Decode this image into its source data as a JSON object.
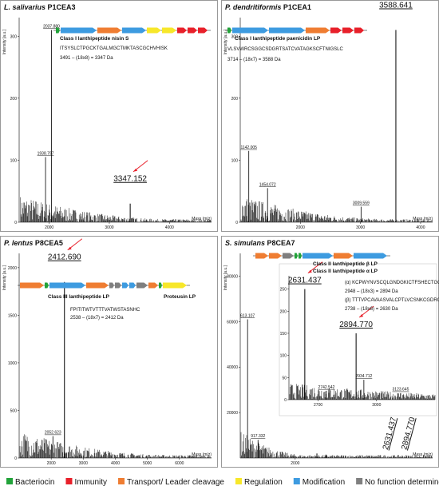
{
  "chart_data": [
    {
      "type": "stem",
      "organism": "L. salivarius",
      "strain": "P1CEA3",
      "ylabel": "Intensity [a.u.]",
      "xlabel": "Mass (m/z)",
      "xlim": [
        1500,
        4700
      ],
      "xticks": [
        2000,
        3000,
        4000
      ],
      "ylim": [
        0,
        330
      ],
      "yticks": [
        0,
        100,
        200,
        300
      ],
      "x": [
        1938.797,
        2037.88,
        3347.152
      ],
      "x_labels": [
        "1938.797",
        "2037.880",
        "3347.152"
      ],
      "values": [
        105,
        310,
        30
      ],
      "highlight": [
        2
      ],
      "annotations": [
        "Class I lanthipeptide nisin S",
        "ITSYSLCTPGCKTGALMGCTMKTASCGCHVHISK",
        "3491 – (18x8) = 3347 Da"
      ]
    },
    {
      "type": "stem",
      "organism": "P. dendritiformis",
      "strain": "P1CEA1",
      "ylabel": "Intensity [a.u.]",
      "xlabel": "Mass (m/z)",
      "xlim": [
        1000,
        4200
      ],
      "xticks": [
        2000,
        3000,
        4000
      ],
      "ylim": [
        0,
        330
      ],
      "yticks": [
        0,
        100,
        200,
        300
      ],
      "x": [
        1142.005,
        1454.072,
        3009.559,
        3588.641
      ],
      "x_labels": [
        "1142.005",
        "1454.072",
        "3009.559",
        "3588.641"
      ],
      "values": [
        115,
        55,
        25,
        310
      ],
      "highlight": [
        3
      ],
      "annotations": [
        "Class I lanthipeptide paenicidin LP",
        "VLSVWRCSGGCSDGRTSATCVATAGKSCFTNIGSLC",
        "3714 – (18x7) = 3588 Da"
      ]
    },
    {
      "type": "stem",
      "organism": "P. lentus",
      "strain": "P8CEA5",
      "ylabel": "Intensity [a.u.]",
      "xlabel": "Mass (m/z)",
      "xlim": [
        1000,
        7000
      ],
      "xticks": [
        2000,
        3000,
        4000,
        5000,
        6000
      ],
      "ylim": [
        0,
        2150
      ],
      "yticks": [
        0,
        500,
        1000,
        1500,
        2000
      ],
      "x": [
        2052.623,
        2412.69
      ],
      "x_labels": [
        "2052.623",
        "2412.690"
      ],
      "values": [
        230,
        1850
      ],
      "highlight": [
        1
      ],
      "annotations": [
        "Class III lanthipeptide LP",
        "Proteusin LP",
        "FPITITWTVTTTVATWSTASNHC",
        "2538 – (18x7) = 2412 Da"
      ]
    },
    {
      "type": "stem",
      "organism": "S. simulans",
      "strain": "P8CEA7",
      "ylabel": "Intensity [a.u.]",
      "xlabel": "Mass (m/z)",
      "xlim": [
        400,
        6000
      ],
      "xticks": [
        2000
      ],
      "ylim": [
        0,
        90000
      ],
      "yticks": [
        20000,
        40000,
        60000,
        80000
      ],
      "x": [
        613.107,
        917.332,
        2631.437,
        2894.77
      ],
      "x_labels": [
        "613.107",
        "917.332",
        "2631.437",
        "2894.770"
      ],
      "values": [
        61000,
        8000,
        2000,
        1500
      ],
      "highlight": [
        2,
        3
      ],
      "annotations": [
        "Class II lanthipeptide β LP",
        "Class II lanthipeptide α LP",
        "(α) KCPWYNVSCQLGNDGKICTFSHECTGG",
        "2948 – (18x3) = 2894 Da",
        "(β) TTTVPCAVAASVALCPTLVCSNKCGDRG",
        "2738 – (18x6) = 2630 Da"
      ],
      "inset": {
        "type": "stem",
        "xlim": [
          2550,
          3300
        ],
        "xticks": [
          2700,
          3000
        ],
        "ylim": [
          0,
          280
        ],
        "yticks": [
          0,
          50,
          100,
          150,
          200,
          250
        ],
        "x": [
          2631.437,
          2742.542,
          2894.77,
          2934.712,
          3123.645
        ],
        "x_labels": [
          "2631.437",
          "2742.542",
          "2894.770",
          "2934.712",
          "3123.645"
        ],
        "values": [
          250,
          20,
          150,
          45,
          15
        ],
        "highlight": [
          0,
          2
        ]
      }
    }
  ],
  "legend": [
    {
      "name": "Bacteriocin",
      "color": "#22a33a"
    },
    {
      "name": "Immunity",
      "color": "#e8202a"
    },
    {
      "name": "Transport/ Leader cleavage",
      "color": "#ef7d32"
    },
    {
      "name": "Regulation",
      "color": "#f7e72a"
    },
    {
      "name": "Modification",
      "color": "#3d9be0"
    },
    {
      "name": "No function determined",
      "color": "#7f7f7f"
    }
  ]
}
